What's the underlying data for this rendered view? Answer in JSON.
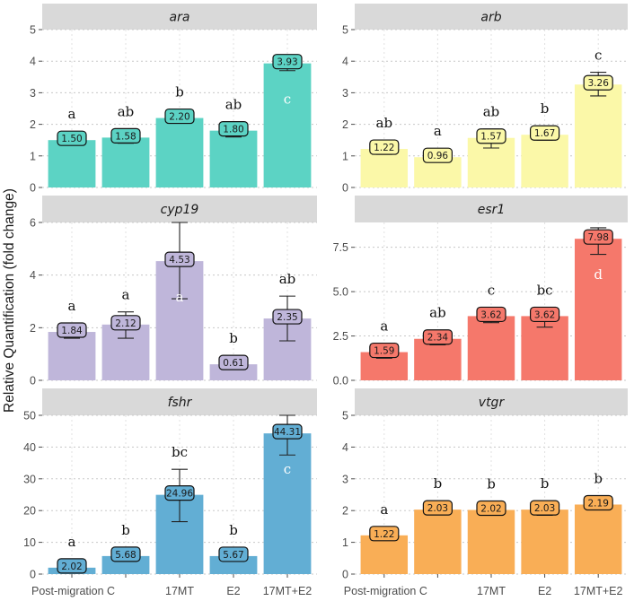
{
  "chart_data": {
    "type": "bar",
    "ylabel": "Relative Quantification (fold change)",
    "categories": [
      "Post-migration C",
      "",
      "17MT",
      "E2",
      "17MT+E2"
    ],
    "panels": [
      {
        "title": "ara",
        "color": "#5cd3c4",
        "ylim": [
          0,
          5
        ],
        "ticks": [
          "0",
          "1",
          "2",
          "3",
          "4",
          "5"
        ],
        "values": [
          1.5,
          1.58,
          2.2,
          1.8,
          3.93
        ],
        "value_labels": [
          "1.50",
          "1.58",
          "2.20",
          "1.80",
          "3.93"
        ],
        "err_low": [
          1.35,
          1.4,
          2.05,
          1.6,
          3.7
        ],
        "err_high": [
          1.55,
          1.7,
          2.3,
          2.05,
          4.1
        ],
        "letters": [
          "a",
          "ab",
          "b",
          "ab",
          "c"
        ],
        "letter_inside": [
          false,
          false,
          false,
          false,
          true
        ]
      },
      {
        "title": "arb",
        "color": "#fbf8a8",
        "ylim": [
          0,
          5
        ],
        "ticks": [
          "0",
          "1",
          "2",
          "3",
          "4",
          "5"
        ],
        "values": [
          1.22,
          0.96,
          1.57,
          1.67,
          3.26
        ],
        "value_labels": [
          "1.22",
          "0.96",
          "1.57",
          "1.67",
          "3.26"
        ],
        "err_low": [
          1.05,
          0.85,
          1.25,
          1.5,
          2.9
        ],
        "err_high": [
          1.35,
          1.05,
          1.85,
          1.8,
          3.65
        ],
        "letters": [
          "ab",
          "a",
          "ab",
          "b",
          "c"
        ],
        "letter_inside": [
          false,
          false,
          false,
          false,
          false
        ]
      },
      {
        "title": "cyp19",
        "color": "#bfb6da",
        "ylim": [
          0,
          6
        ],
        "ticks": [
          "0",
          "2",
          "4",
          "6"
        ],
        "tick_values": [
          0,
          2,
          4,
          6
        ],
        "values": [
          1.84,
          2.12,
          4.53,
          0.61,
          2.35
        ],
        "value_labels": [
          "1.84",
          "2.12",
          "4.53",
          "0.61",
          "2.35"
        ],
        "err_low": [
          1.6,
          1.6,
          3.1,
          0.55,
          1.5
        ],
        "err_high": [
          2.0,
          2.6,
          6.0,
          0.65,
          3.2
        ],
        "letters": [
          "a",
          "a",
          "a",
          "b",
          "ab"
        ],
        "letter_inside": [
          false,
          false,
          true,
          false,
          false
        ]
      },
      {
        "title": "esr1",
        "color": "#f5786b",
        "ylim": [
          0,
          8.9
        ],
        "ticks": [
          "0.0",
          "2.5",
          "5.0",
          "7.5"
        ],
        "tick_values": [
          0,
          2.5,
          5.0,
          7.5
        ],
        "values": [
          1.59,
          2.34,
          3.62,
          3.62,
          7.98
        ],
        "value_labels": [
          "1.59",
          "2.34",
          "3.62",
          "3.62",
          "7.98"
        ],
        "err_low": [
          1.25,
          2.0,
          3.25,
          3.0,
          7.1
        ],
        "err_high": [
          1.85,
          2.65,
          4.0,
          4.05,
          8.6
        ],
        "letters": [
          "a",
          "ab",
          "c",
          "bc",
          "d"
        ],
        "letter_inside": [
          false,
          false,
          false,
          false,
          true
        ]
      },
      {
        "title": "fshr",
        "color": "#62aed4",
        "ylim": [
          0,
          50
        ],
        "ticks": [
          "0",
          "10",
          "20",
          "30",
          "40",
          "50"
        ],
        "tick_values": [
          0,
          10,
          20,
          30,
          40,
          50
        ],
        "values": [
          2.02,
          5.68,
          24.96,
          5.67,
          44.31
        ],
        "value_labels": [
          "2.02",
          "5.68",
          "24.96",
          "5.67",
          "44.31"
        ],
        "err_low": [
          2.02,
          5.4,
          16.5,
          5.4,
          37.5
        ],
        "err_high": [
          2.02,
          6.0,
          33.0,
          5.9,
          50.0
        ],
        "letters": [
          "a",
          "b",
          "bc",
          "b",
          "c"
        ],
        "letter_inside": [
          false,
          false,
          false,
          false,
          true
        ]
      },
      {
        "title": "vtgr",
        "color": "#f9ae56",
        "ylim": [
          0,
          5
        ],
        "ticks": [
          "0",
          "1",
          "2",
          "3",
          "4",
          "5"
        ],
        "values": [
          1.22,
          2.03,
          2.02,
          2.03,
          2.19
        ],
        "value_labels": [
          "1.22",
          "2.03",
          "2.02",
          "2.03",
          "2.19"
        ],
        "err_low": [
          1.15,
          1.9,
          1.9,
          1.85,
          2.1
        ],
        "err_high": [
          1.25,
          2.15,
          2.1,
          2.2,
          2.25
        ],
        "letters": [
          "a",
          "b",
          "b",
          "b",
          "b"
        ],
        "letter_inside": [
          false,
          false,
          false,
          false,
          false
        ]
      }
    ]
  }
}
